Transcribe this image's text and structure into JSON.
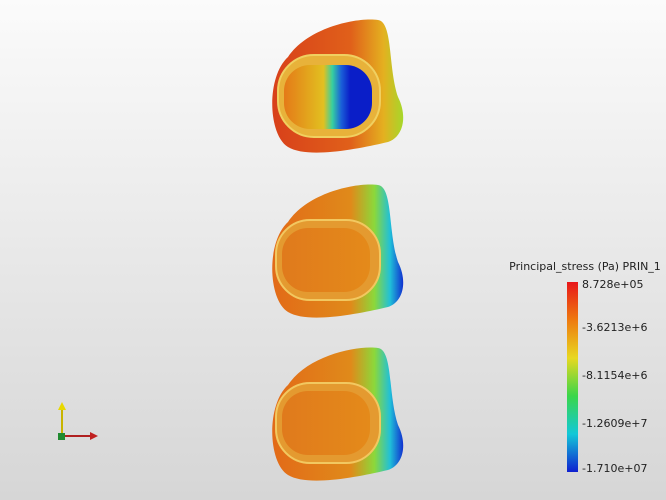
{
  "colorbar": {
    "title": "Principal_stress (Pa) PRIN_1",
    "tick_labels": [
      "8.728e+05",
      "-3.6213e+6",
      "-8.1154e+6",
      "-1.2609e+7",
      "-1.710e+07"
    ]
  }
}
